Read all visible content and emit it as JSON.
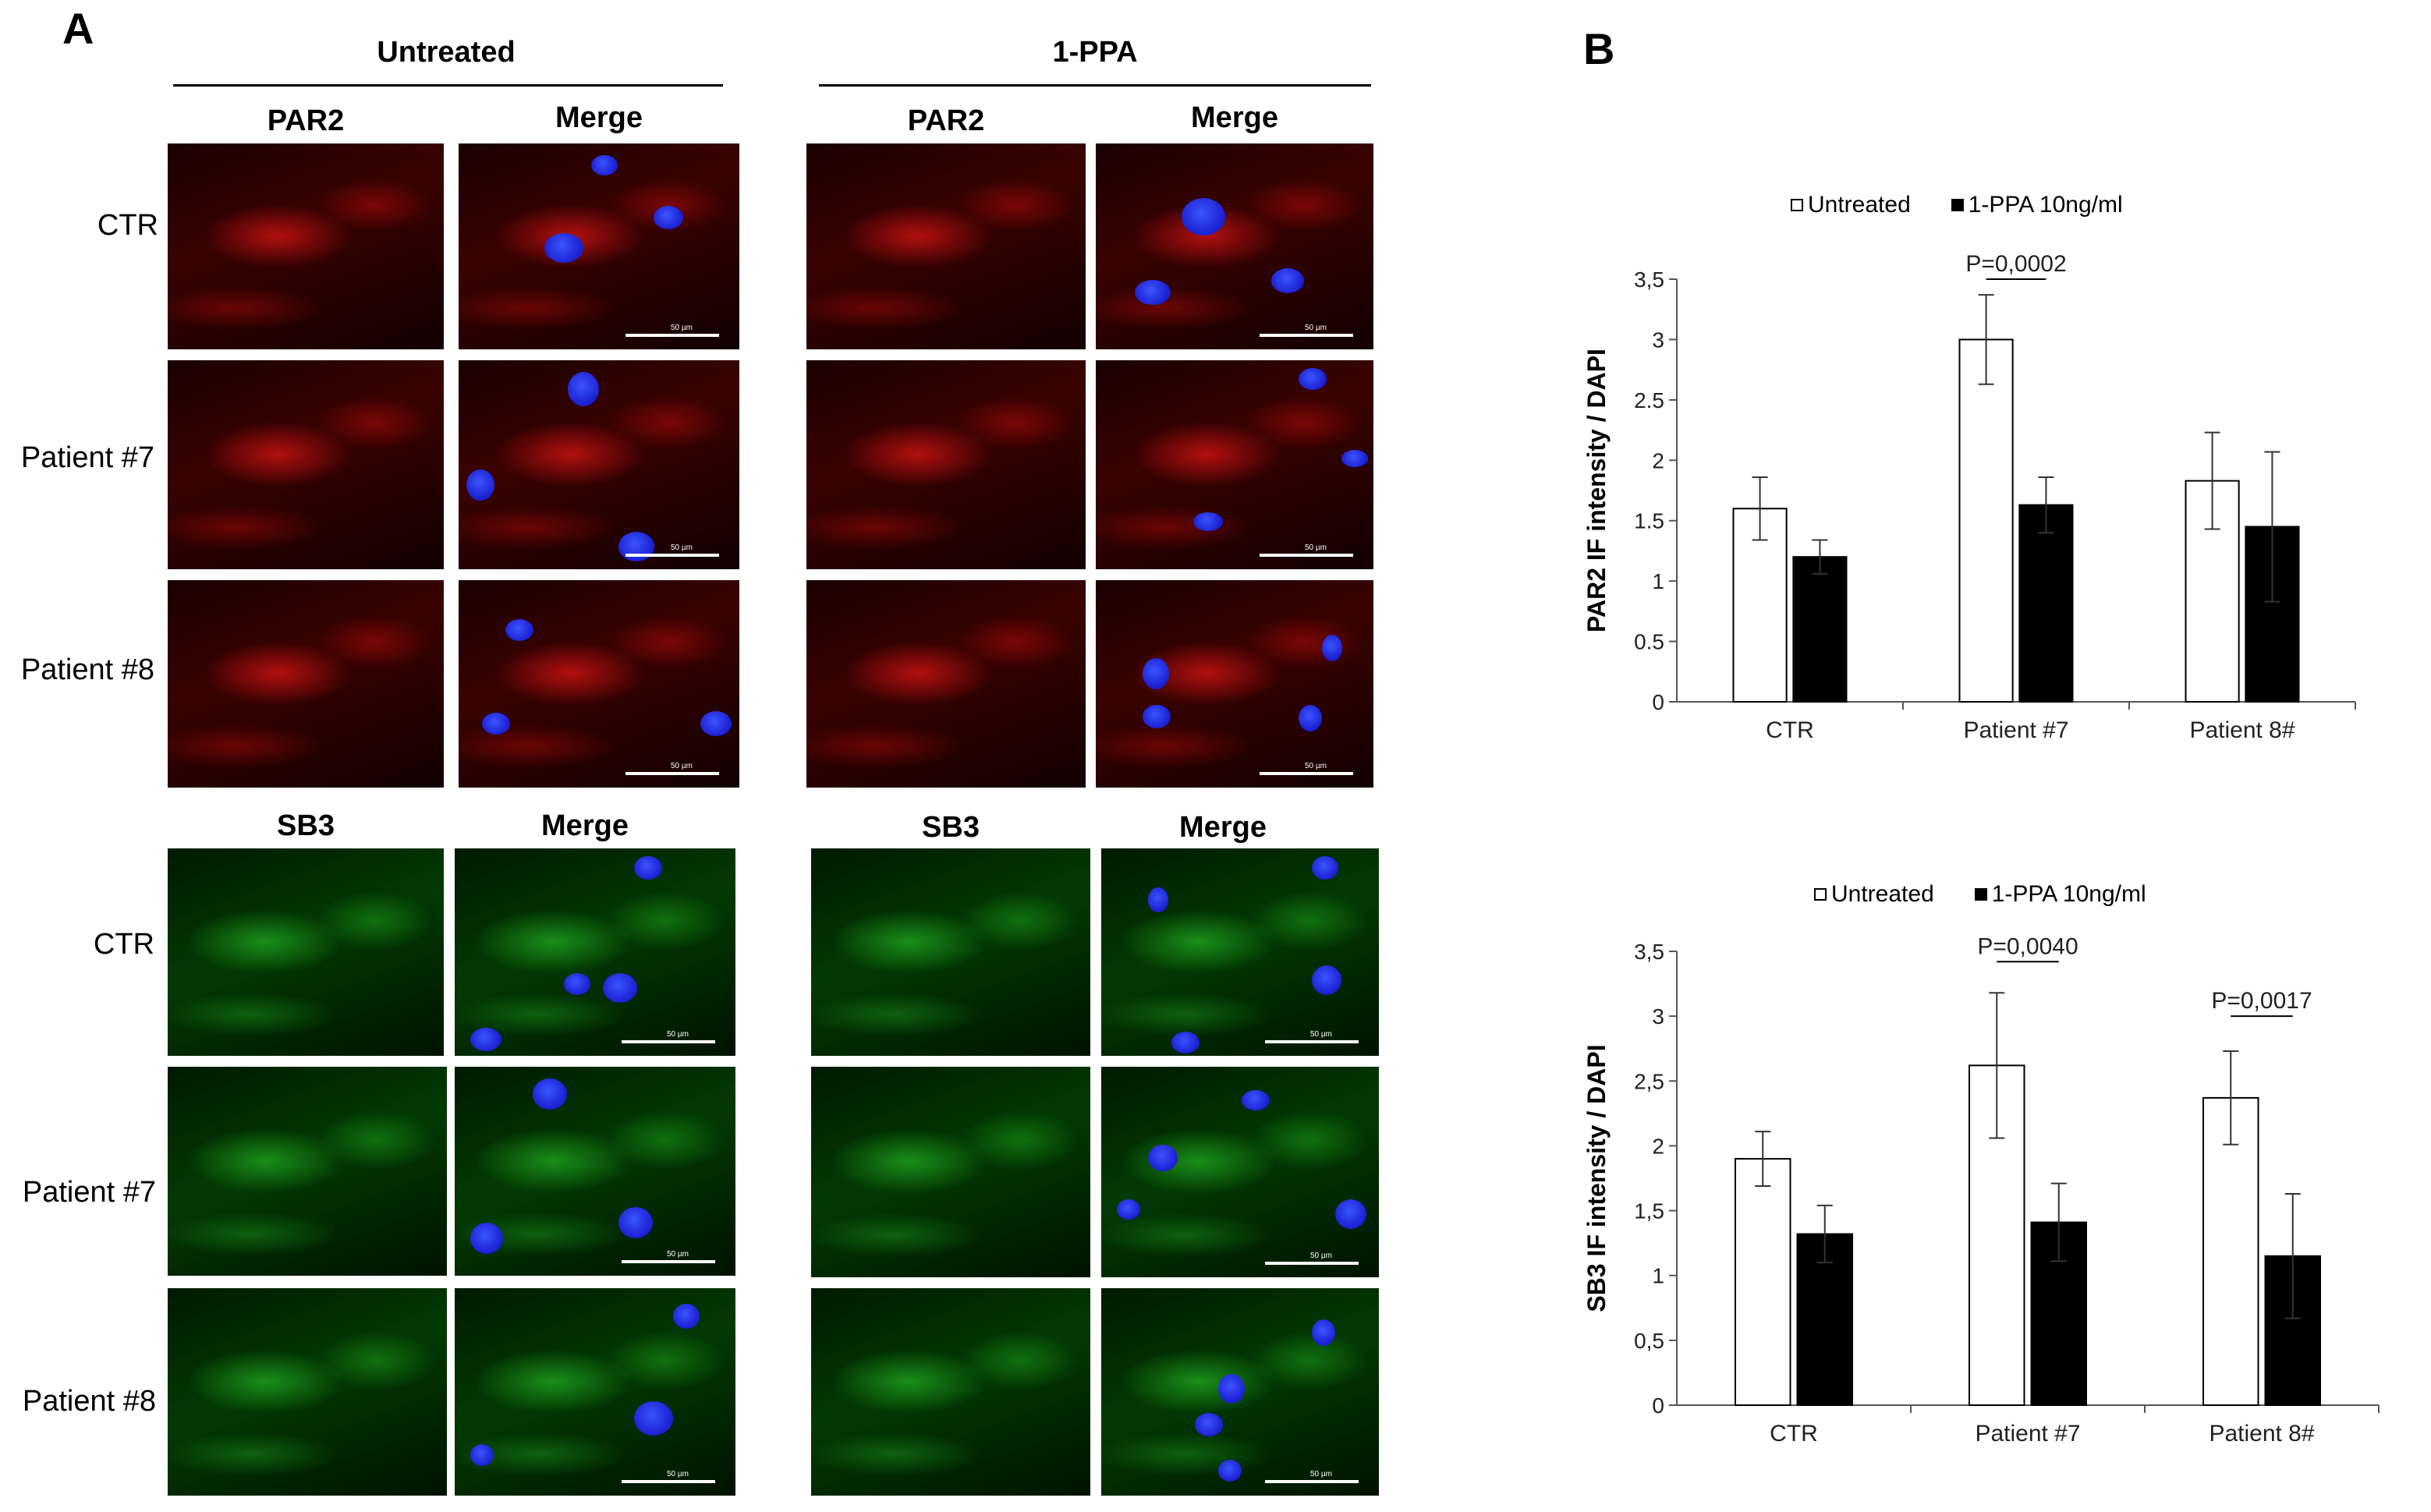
{
  "panel_a": {
    "letter": "A",
    "groups": [
      {
        "title": "Untreated",
        "col1": "PAR2",
        "col2": "Merge",
        "col3": "SB3",
        "col4": "Merge"
      },
      {
        "title": "1-PPA",
        "col1": "PAR2",
        "col2": "Merge",
        "col3": "SB3",
        "col4": "Merge"
      }
    ],
    "top_rows": [
      "CTR",
      "Patient #7",
      "Patient #8"
    ],
    "bottom_rows": [
      "CTR",
      "Patient #7",
      "Patient #8"
    ],
    "scale_bar_text": "50 µm",
    "colors": {
      "par2": "#d01010",
      "sb3": "#22c022",
      "dapi": "#2a3cff"
    }
  },
  "panel_b": {
    "letter": "B"
  },
  "chart_data": [
    {
      "type": "bar",
      "title": "",
      "ylabel": "PAR2 IF intensity / DAPI",
      "xlabel": "",
      "categories": [
        "CTR",
        "Patient #7",
        "Patient 8#"
      ],
      "series": [
        {
          "name": "Untreated",
          "values": [
            1.6,
            3.0,
            1.83
          ],
          "errors": [
            0.26,
            0.37,
            0.4
          ],
          "color": "#ffffff"
        },
        {
          "name": "1-PPA 10ng/ml",
          "values": [
            1.2,
            1.63,
            1.45
          ],
          "errors": [
            0.14,
            0.23,
            0.62
          ],
          "color": "#000000"
        }
      ],
      "ylim": [
        0,
        3.5
      ],
      "yticks": [
        "0",
        "0.5",
        "1",
        "1.5",
        "2",
        "2.5",
        "3",
        "3,5"
      ],
      "legend_position": "top",
      "annotations": [
        {
          "text": "P=0,0002",
          "category_index": 1,
          "y": 3.5
        }
      ]
    },
    {
      "type": "bar",
      "title": "",
      "ylabel": "SB3 IF intensity / DAPI",
      "xlabel": "",
      "categories": [
        "CTR",
        "Patient #7",
        "Patient 8#"
      ],
      "series": [
        {
          "name": "Untreated",
          "values": [
            1.9,
            2.62,
            2.37
          ],
          "errors": [
            0.21,
            0.56,
            0.36
          ],
          "color": "#ffffff"
        },
        {
          "name": "1-PPA 10ng/ml",
          "values": [
            1.32,
            1.41,
            1.15
          ],
          "errors": [
            0.22,
            0.3,
            0.48
          ],
          "color": "#000000"
        }
      ],
      "ylim": [
        0,
        3.5
      ],
      "yticks": [
        "0",
        "0,5",
        "1",
        "1,5",
        "2",
        "2,5",
        "3",
        "3,5"
      ],
      "legend_position": "top",
      "annotations": [
        {
          "text": "P=0,0040",
          "category_index": 1,
          "y": 3.42
        },
        {
          "text": "P=0,0017",
          "category_index": 2,
          "y": 3.0
        }
      ]
    }
  ]
}
